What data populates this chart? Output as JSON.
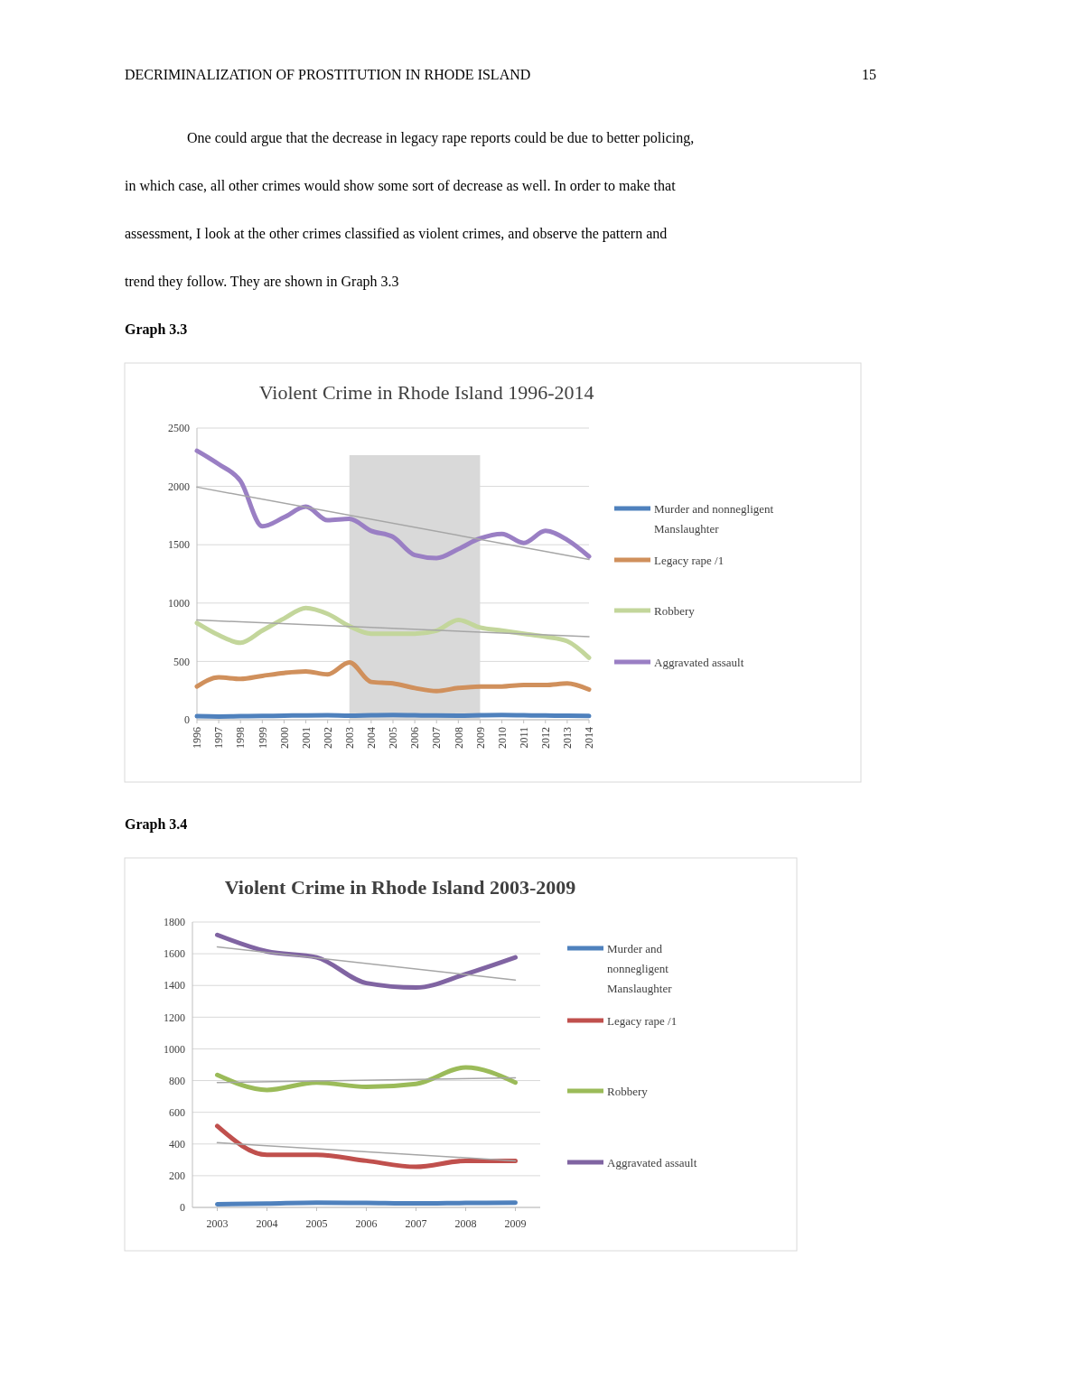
{
  "chart_data": [
    {
      "type": "line",
      "title": "Violent Crime in Rhode Island 1996-2014",
      "annotations": [
        "DECRIMINALIZATION OF PROSTITUTION IN RHODE ISLAND",
        "15",
        "One could argue that the decrease in legacy rape reports could be due to better policing,",
        "in which case, all other crimes would show some sort of decrease as well. In order to make that",
        "assessment, I look at the other crimes classified as violent crimes, and observe the pattern and",
        "trend they follow. They are shown in Graph 3.3",
        "Graph 3.3"
      ],
      "x": [
        1996,
        1997,
        1998,
        1999,
        2000,
        2001,
        2002,
        2003,
        2004,
        2005,
        2006,
        2007,
        2008,
        2009,
        2010,
        2011,
        2012,
        2013,
        2014
      ],
      "xlim": [
        1996,
        2014
      ],
      "xticks": [
        1996,
        1997,
        1998,
        1999,
        2000,
        2001,
        2002,
        2003,
        2004,
        2005,
        2006,
        2007,
        2008,
        2009,
        2010,
        2011,
        2012,
        2013,
        2014
      ],
      "ylim": [
        0,
        2500
      ],
      "yticks": [
        0,
        500,
        1000,
        1500,
        2000,
        2500
      ],
      "grid": "y",
      "legend": "right",
      "bands": [
        {
          "axis": "x",
          "from": 2003,
          "to": 2009,
          "color": "#d9d9d9"
        }
      ],
      "series": [
        {
          "name": "Murder and nonnegligent Manslaughter",
          "color": "#4f81bd",
          "values": [
            30,
            28,
            30,
            32,
            35,
            37,
            38,
            35,
            38,
            40,
            38,
            36,
            35,
            38,
            40,
            38,
            36,
            35,
            32
          ]
        },
        {
          "name": "Legacy rape /1",
          "color": "#d0905c",
          "values": [
            285,
            363,
            350,
            376,
            401,
            414,
            389,
            492,
            324,
            311,
            272,
            246,
            272,
            285,
            285,
            298,
            298,
            311,
            259
          ]
        },
        {
          "name": "Robbery",
          "color": "#c3d69b",
          "values": [
            829,
            725,
            660,
            764,
            868,
            958,
            907,
            803,
            738,
            738,
            738,
            764,
            855,
            790,
            764,
            738,
            712,
            673,
            531
          ]
        },
        {
          "name": "Aggravated assault",
          "color": "#9a7fc4",
          "values": [
            2305,
            2190,
            2046,
            1658,
            1735,
            1826,
            1710,
            1722,
            1619,
            1567,
            1412,
            1386,
            1463,
            1554,
            1593,
            1515,
            1619,
            1541,
            1399
          ]
        },
        {
          "type": "line",
          "color": "#a6a6a6",
          "x": [
            1996,
            2014
          ],
          "values": [
            1994,
            1373
          ]
        },
        {
          "type": "line",
          "color": "#a6a6a6",
          "x": [
            1996,
            2014
          ],
          "values": [
            855,
            712
          ]
        }
      ]
    },
    {
      "type": "line",
      "title": "Violent Crime in Rhode Island 2003-2009",
      "annotations": [
        "Graph 3.4"
      ],
      "x": [
        2003,
        2004,
        2005,
        2006,
        2007,
        2008,
        2009
      ],
      "xlim": [
        2002.5,
        2009.5
      ],
      "xticks": [
        2003,
        2004,
        2005,
        2006,
        2007,
        2008,
        2009
      ],
      "ylim": [
        0,
        1800
      ],
      "yticks": [
        0,
        200,
        400,
        600,
        800,
        1000,
        1200,
        1400,
        1600,
        1800
      ],
      "grid": "y",
      "legend": "right",
      "series": [
        {
          "name": "Murder and nonnegligent Manslaughter",
          "color": "#4f81bd",
          "values": [
            20,
            24,
            30,
            28,
            25,
            28,
            30
          ]
        },
        {
          "name": "Legacy rape /1",
          "color": "#c0504d",
          "values": [
            513,
            332,
            332,
            294,
            256,
            294,
            294
          ]
        },
        {
          "name": "Robbery",
          "color": "#9bbb59",
          "values": [
            836,
            741,
            788,
            760,
            779,
            883,
            788
          ]
        },
        {
          "name": "Aggravated assault",
          "color": "#8064a2",
          "values": [
            1719,
            1615,
            1577,
            1415,
            1387,
            1472,
            1577
          ]
        },
        {
          "type": "line",
          "color": "#a6a6a6",
          "x": [
            2003,
            2009
          ],
          "values": [
            1643,
            1434
          ]
        },
        {
          "type": "line",
          "color": "#a6a6a6",
          "x": [
            2003,
            2009
          ],
          "values": [
            788,
            817
          ]
        },
        {
          "type": "line",
          "color": "#a6a6a6",
          "x": [
            2003,
            2009
          ],
          "values": [
            408,
            294
          ]
        }
      ]
    }
  ]
}
